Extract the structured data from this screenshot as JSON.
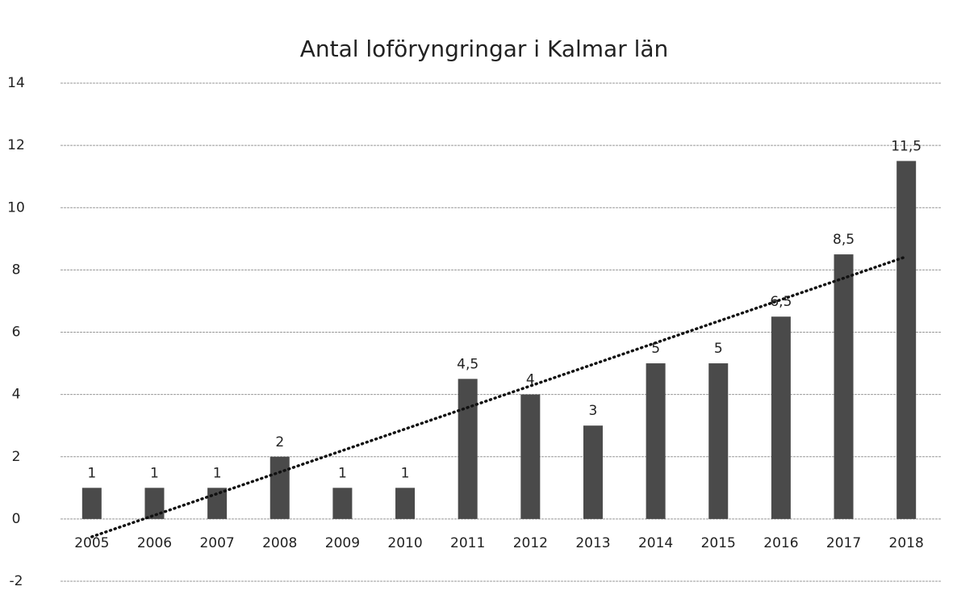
{
  "chart_data": {
    "type": "bar",
    "title": "Antal loföryngringar i Kalmar län",
    "categories": [
      "2005",
      "2006",
      "2007",
      "2008",
      "2009",
      "2010",
      "2011",
      "2012",
      "2013",
      "2014",
      "2015",
      "2016",
      "2017",
      "2018"
    ],
    "values": [
      1,
      1,
      1,
      2,
      1,
      1,
      4.5,
      4,
      3,
      5,
      5,
      6.5,
      8.5,
      11.5
    ],
    "value_labels": [
      "1",
      "1",
      "1",
      "2",
      "1",
      "1",
      "4,5",
      "4",
      "3",
      "5",
      "5",
      "6,5",
      "8,5",
      "11,5"
    ],
    "color": "#4a4a4a",
    "ylim": [
      -2,
      14
    ],
    "yticks": [
      -2,
      0,
      2,
      4,
      6,
      8,
      10,
      12,
      14
    ],
    "grid": true,
    "trendline": "linear"
  }
}
